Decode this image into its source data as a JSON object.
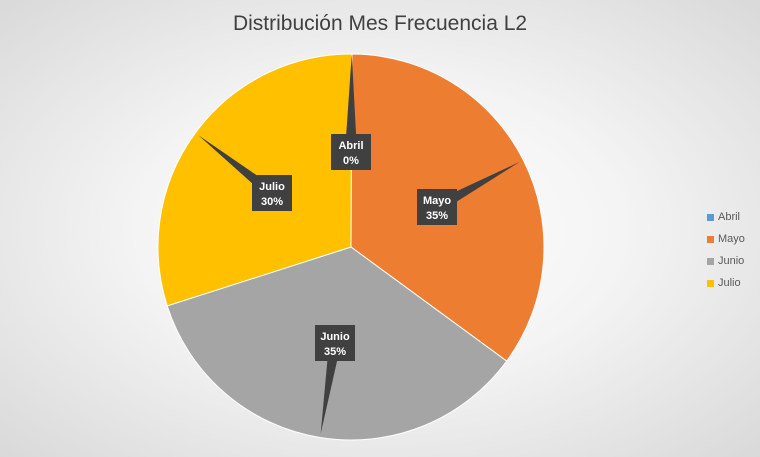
{
  "chart_data": {
    "type": "pie",
    "title": "Distribución Mes Frecuencia L2",
    "categories": [
      "Abril",
      "Mayo",
      "Junio",
      "Julio"
    ],
    "values": [
      0,
      35,
      35,
      30
    ],
    "data_labels": [
      "0%",
      "35%",
      "35%",
      "30%"
    ],
    "colors": [
      "#5b9bd5",
      "#ed7d31",
      "#a5a5a5",
      "#ffc000"
    ],
    "legend_position": "right",
    "label_style": "callout"
  }
}
